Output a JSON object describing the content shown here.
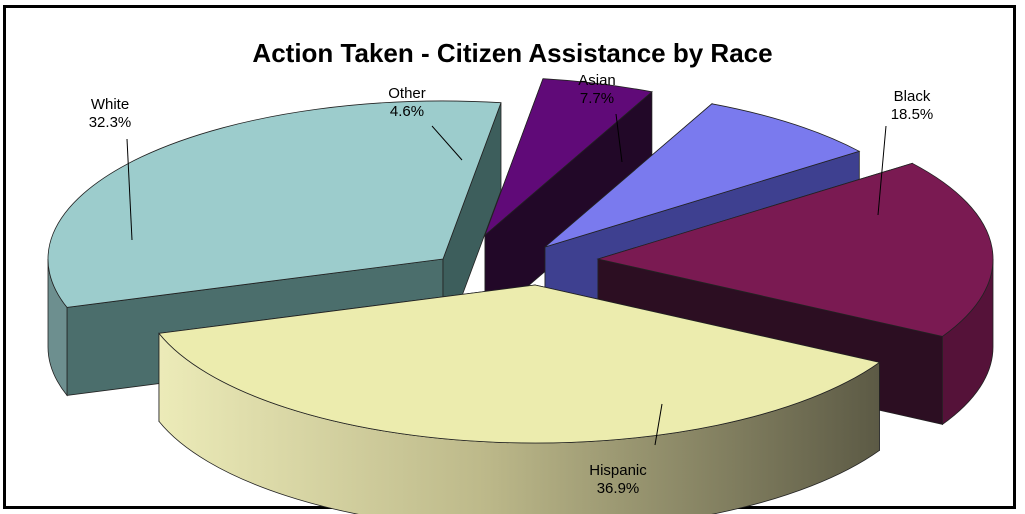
{
  "chart_data": {
    "type": "pie",
    "style": "3d-exploded",
    "title": "Action Taken - Citizen Assistance by Race",
    "slices": [
      {
        "label": "Asian",
        "value": 7.7,
        "percent_label": "7.7%",
        "color": "#7a7aee"
      },
      {
        "label": "Black",
        "value": 18.5,
        "percent_label": "18.5%",
        "color": "#7a1a52"
      },
      {
        "label": "Hispanic",
        "value": 36.9,
        "percent_label": "36.9%",
        "color": "#ececae"
      },
      {
        "label": "White",
        "value": 32.3,
        "percent_label": "32.3%",
        "color": "#9ccccc"
      },
      {
        "label": "Other",
        "value": 4.6,
        "percent_label": "4.6%",
        "color": "#600a78"
      }
    ]
  }
}
